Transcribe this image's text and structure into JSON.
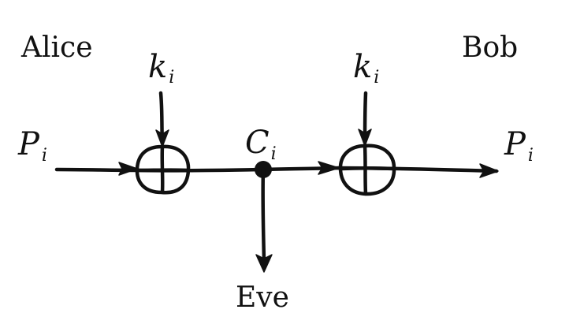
{
  "labels": {
    "alice": "Alice",
    "bob": "Bob",
    "eve": "Eve",
    "k_main": "k",
    "k_sub": "i",
    "p_main": "P",
    "p_sub": "i",
    "c_main": "C",
    "c_sub": "i"
  },
  "operators": {
    "left": "XOR",
    "right": "XOR"
  },
  "colors": {
    "ink": "#111111",
    "background": "#ffffff"
  }
}
